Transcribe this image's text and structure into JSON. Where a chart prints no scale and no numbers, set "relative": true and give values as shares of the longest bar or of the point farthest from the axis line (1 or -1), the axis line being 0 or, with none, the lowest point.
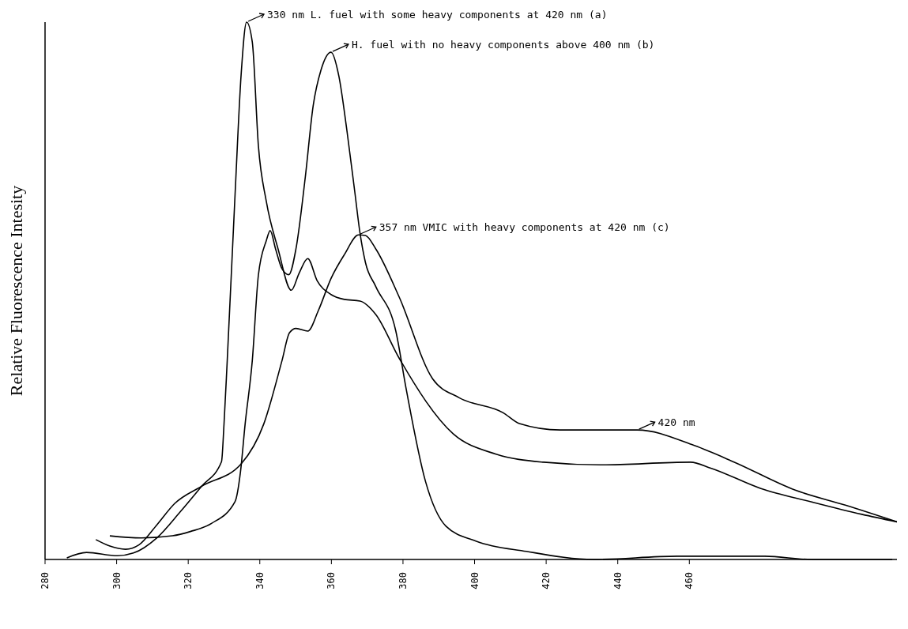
{
  "chart_data": {
    "type": "line",
    "ylabel": "Relative Fluorescence Intesity",
    "relative": true,
    "xlim": [
      280,
      518
    ],
    "xticks": [
      280,
      300,
      320,
      340,
      360,
      380,
      400,
      420,
      440,
      460
    ],
    "series": [
      {
        "color": "#000000",
        "x": [
          286.1,
          291.6,
          300.3,
          304.7,
          311.2,
          317.8,
          323.7,
          329.3,
          330.0,
          330.9,
          333.1,
          334.8,
          336.3,
          337.9,
          339.6,
          341.8,
          345.1,
          348.8,
          351.0,
          353.4,
          356.0,
          359.9,
          363.6,
          368.0,
          372.4,
          378.9,
          394.0,
          406.0,
          419.3,
          435.2,
          460.3,
          466.0,
          480.0,
          494.2,
          508.2,
          518.0
        ],
        "values": [
          0.003,
          0.013,
          0.007,
          0.012,
          0.04,
          0.089,
          0.136,
          0.182,
          0.252,
          0.37,
          0.681,
          0.904,
          1.0,
          0.963,
          0.77,
          0.667,
          0.578,
          0.501,
          0.533,
          0.56,
          0.519,
          0.493,
          0.484,
          0.481,
          0.456,
          0.375,
          0.234,
          0.196,
          0.181,
          0.176,
          0.181,
          0.17,
          0.132,
          0.107,
          0.084,
          0.07
        ]
      },
      {
        "color": "#000000",
        "x": [
          298.1,
          306.9,
          315.6,
          320.6,
          326.5,
          333.1,
          334.6,
          335.9,
          337.9,
          339.6,
          341.8,
          342.9,
          344.4,
          346.2,
          348.1,
          350.1,
          352.7,
          354.9,
          357.1,
          359.9,
          362.1,
          364.3,
          366.5,
          368.0,
          369.5,
          372.4,
          378.0,
          380.9,
          386.3,
          392.0,
          400.5,
          414.5,
          433.3,
          456.6,
          481.1,
          494.2,
          516.7
        ],
        "values": [
          0.044,
          0.04,
          0.044,
          0.052,
          0.067,
          0.108,
          0.163,
          0.252,
          0.37,
          0.529,
          0.593,
          0.612,
          0.578,
          0.541,
          0.53,
          0.578,
          0.711,
          0.844,
          0.911,
          0.944,
          0.899,
          0.8,
          0.686,
          0.607,
          0.553,
          0.508,
          0.425,
          0.317,
          0.145,
          0.062,
          0.034,
          0.015,
          0.0,
          0.006,
          0.006,
          0.0,
          0.0
        ]
      },
      {
        "color": "#000000",
        "x": [
          294.2,
          298.1,
          302.5,
          306.2,
          311.2,
          316.2,
          323.7,
          334.8,
          341.1,
          346.2,
          348.3,
          350.1,
          353.4,
          356.4,
          359.9,
          363.6,
          367.6,
          369.5,
          372.4,
          378.9,
          388.3,
          395.7,
          408.0,
          412.5,
          423.9,
          445.5,
          461.4,
          472.6,
          489.6,
          503.6,
          518.0
        ],
        "values": [
          0.037,
          0.025,
          0.019,
          0.027,
          0.064,
          0.104,
          0.136,
          0.178,
          0.252,
          0.37,
          0.422,
          0.43,
          0.425,
          0.464,
          0.523,
          0.567,
          0.604,
          0.603,
          0.578,
          0.489,
          0.336,
          0.301,
          0.273,
          0.253,
          0.241,
          0.241,
          0.212,
          0.181,
          0.129,
          0.101,
          0.07
        ]
      }
    ],
    "annotations": [
      {
        "text": "330 nm  L. fuel with some heavy components at 420 nm (a)",
        "x": 336.3,
        "y": 1.0
      },
      {
        "text": "H. fuel with no heavy components above 400 nm (b)",
        "x": 359.9,
        "y": 0.944
      },
      {
        "text": "357 nm VMIC with heavy components at 420 nm (c)",
        "x": 367.6,
        "y": 0.604
      },
      {
        "text": "420 nm",
        "x": 445.5,
        "y": 0.241
      }
    ]
  }
}
